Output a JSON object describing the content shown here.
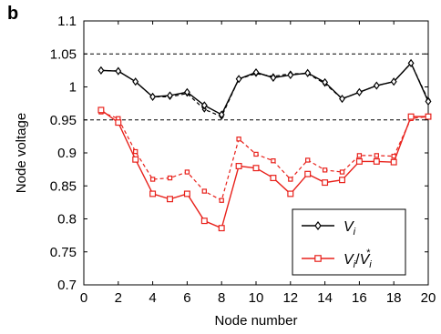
{
  "panel_label": "b",
  "chart_data": {
    "type": "line",
    "xlabel": "Node number",
    "ylabel": "Node voltage",
    "xlim": [
      0,
      20
    ],
    "ylim": [
      0.7,
      1.1
    ],
    "xticks": [
      "0",
      "2",
      "4",
      "6",
      "8",
      "10",
      "12",
      "14",
      "16",
      "18",
      "20"
    ],
    "yticks": [
      "0.7",
      "0.75",
      "0.8",
      "0.85",
      "0.9",
      "0.95",
      "1",
      "1.05",
      "1.1"
    ],
    "reference_lines": [
      1.05,
      0.95
    ],
    "grid": false,
    "legend_position": "bottom-right",
    "x": [
      1,
      2,
      3,
      4,
      5,
      6,
      7,
      8,
      9,
      10,
      11,
      12,
      13,
      14,
      15,
      16,
      17,
      18,
      19,
      20
    ],
    "series": [
      {
        "name": "V_i",
        "label_main": "V",
        "label_sub": "i",
        "color": "#000000",
        "marker": "diamond",
        "values": [
          1.025,
          1.024,
          1.008,
          0.985,
          0.987,
          0.992,
          0.972,
          0.958,
          1.012,
          1.022,
          1.014,
          1.018,
          1.021,
          1.007,
          0.982,
          0.992,
          1.002,
          1.008,
          1.036,
          0.978
        ],
        "dashed_values": [
          1.025,
          1.024,
          1.008,
          0.985,
          0.985,
          0.99,
          0.966,
          0.955,
          1.012,
          1.02,
          1.016,
          1.02,
          1.02,
          1.005,
          0.982,
          0.992,
          1.002,
          1.008,
          1.036,
          0.98
        ]
      },
      {
        "name": "V_i/V_i*",
        "label_main": "V",
        "label_sub": "i",
        "label_sep": "/",
        "label_sup": "*",
        "color": "#e8211b",
        "marker": "square",
        "values": [
          0.965,
          0.946,
          0.89,
          0.838,
          0.83,
          0.838,
          0.797,
          0.786,
          0.88,
          0.877,
          0.862,
          0.838,
          0.868,
          0.855,
          0.859,
          0.887,
          0.887,
          0.886,
          0.955,
          0.955
        ],
        "dashed_values": [
          0.962,
          0.952,
          0.902,
          0.86,
          0.862,
          0.871,
          0.842,
          0.828,
          0.921,
          0.898,
          0.888,
          0.86,
          0.889,
          0.874,
          0.871,
          0.896,
          0.896,
          0.895,
          0.952,
          0.955
        ]
      }
    ]
  }
}
